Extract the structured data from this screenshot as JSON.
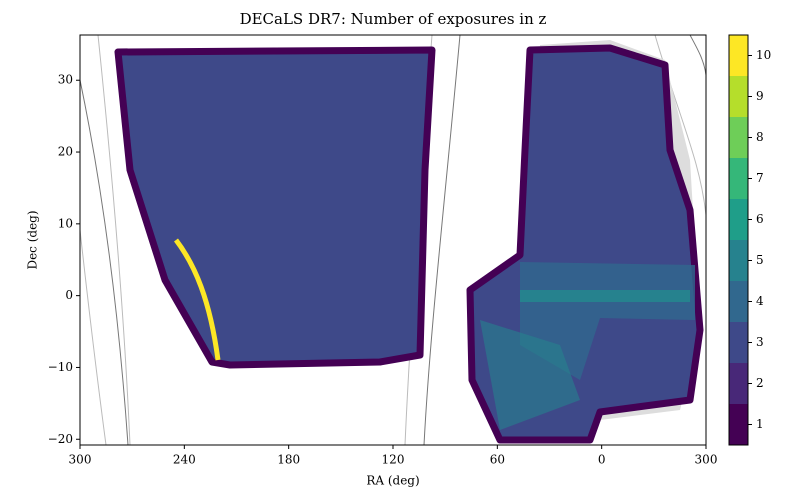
{
  "chart_data": {
    "type": "map",
    "title": "DECaLS DR7: Number of exposures in z",
    "x_label": "RA (deg)",
    "y_label": "Dec (deg)",
    "xlim": [
      300,
      -60
    ],
    "xticks": [
      300,
      240,
      180,
      120,
      60,
      0,
      {
        "value": -60,
        "label": "300"
      }
    ],
    "ylim": [
      -20.8,
      36.3
    ],
    "yticks": [
      {
        "value": -20,
        "label": "−20"
      },
      {
        "value": -10,
        "label": "−10"
      },
      0,
      10,
      20,
      30
    ],
    "colorbar": {
      "lim": [
        0.5,
        10.5
      ],
      "ticks": [
        1,
        2,
        3,
        4,
        5,
        6,
        7,
        8,
        9,
        10
      ],
      "colors": [
        "#440154",
        "#482878",
        "#3e4989",
        "#31688e",
        "#26828e",
        "#1f9e89",
        "#35b779",
        "#6ece58",
        "#b5de2b",
        "#fde725"
      ]
    }
  }
}
